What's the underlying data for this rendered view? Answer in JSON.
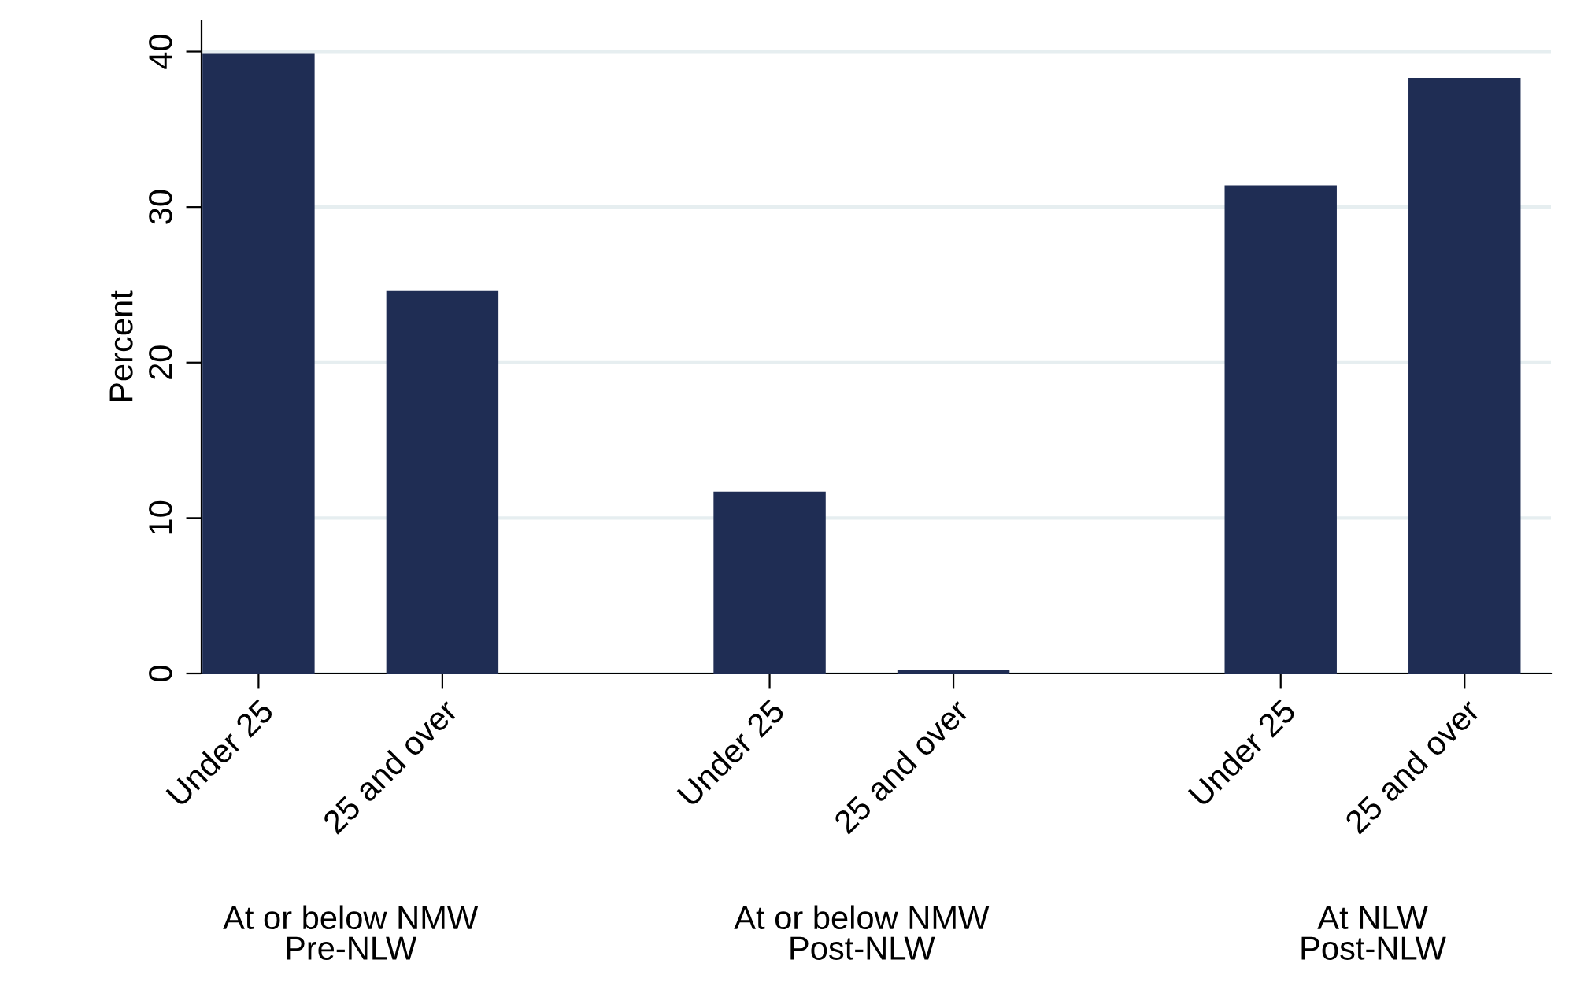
{
  "chart_data": {
    "type": "bar",
    "ylabel": "Percent",
    "categories": [
      "Under 25",
      "25 and over",
      "Under 25",
      "25 and over",
      "Under 25",
      "25 and over"
    ],
    "values": [
      39.9,
      24.6,
      11.7,
      0.2,
      31.4,
      38.3
    ],
    "color": "#1f2d54",
    "ylim": [
      0,
      42
    ],
    "yticks": [
      0,
      10,
      20,
      30,
      40
    ],
    "grid": "y",
    "annotations": [
      "At or below NMW\nPre-NLW",
      "At or below NMW\nPost-NLW",
      "At NLW\nPost-NLW"
    ]
  }
}
